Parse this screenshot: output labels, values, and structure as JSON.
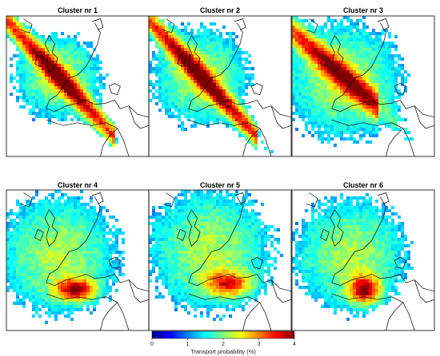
{
  "chart_data": {
    "type": "heatmap",
    "panels": [
      {
        "title": "Cluster nr 1",
        "pattern": "northwest-plume",
        "spread": 0.35
      },
      {
        "title": "Cluster nr 2",
        "pattern": "northwest-plume",
        "spread": 0.55
      },
      {
        "title": "Cluster nr 3",
        "pattern": "west-broad",
        "spread": 0.75
      },
      {
        "title": "Cluster nr 4",
        "pattern": "southeast-mediterranean",
        "spread": 0.8
      },
      {
        "title": "Cluster nr 5",
        "pattern": "east-broad",
        "spread": 0.8
      },
      {
        "title": "Cluster nr 6",
        "pattern": "south-mediterranean",
        "spread": 0.7
      }
    ],
    "colorbar": {
      "label": "Transport probability (%)",
      "ticks": [
        0,
        1,
        2,
        3,
        4
      ],
      "range": [
        0,
        4
      ],
      "colormap": "jet"
    }
  },
  "colors": {
    "background": "#ffffff",
    "frame": "#000000",
    "coast": "#000000"
  }
}
